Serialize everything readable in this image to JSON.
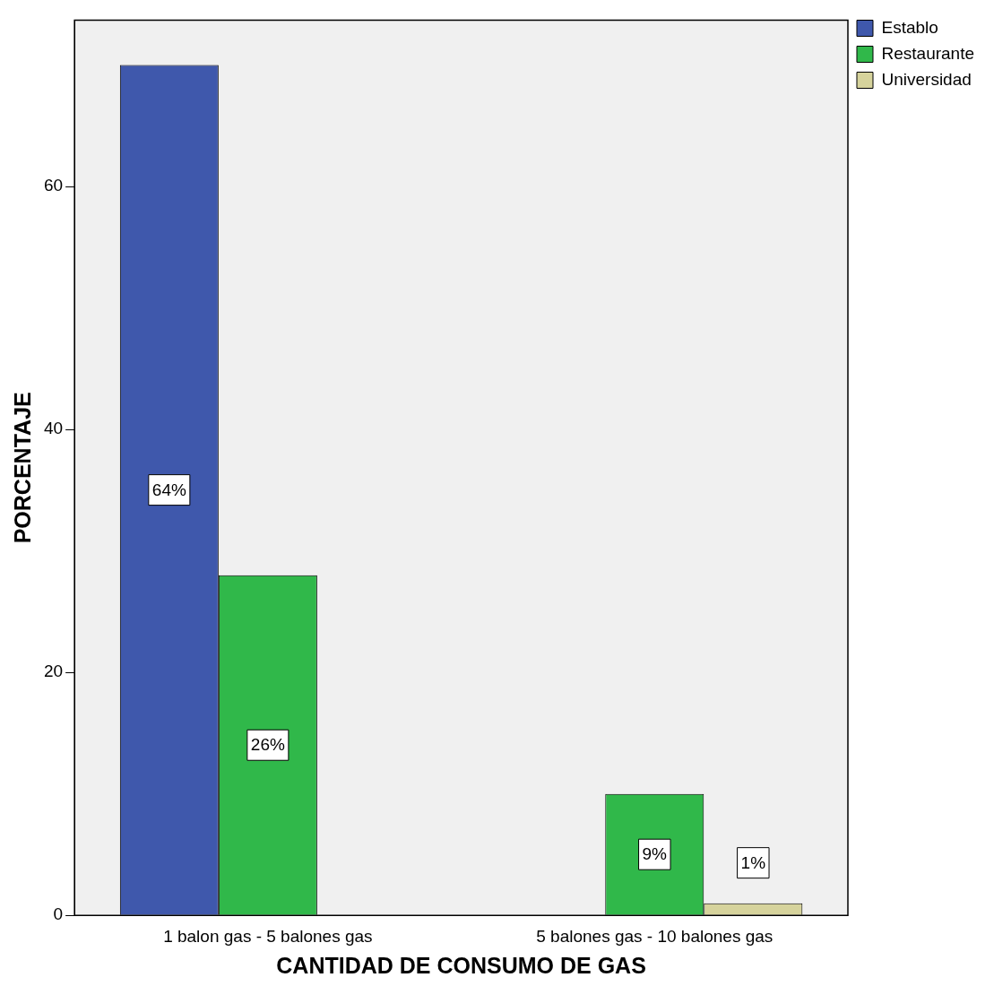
{
  "chart_data": {
    "type": "bar",
    "xlabel": "CANTIDAD DE CONSUMO DE GAS",
    "ylabel": "PORCENTAJE",
    "categories": [
      "1 balon gas - 5 balones gas",
      "5 balones gas - 10 balones gas"
    ],
    "series": [
      {
        "name": "Establo",
        "color": "#3f58ac",
        "values": [
          70,
          null
        ]
      },
      {
        "name": "Restaurante",
        "color": "#30b84a",
        "values": [
          28,
          10
        ]
      },
      {
        "name": "Universidad",
        "color": "#d6d39c",
        "values": [
          null,
          1
        ]
      }
    ],
    "annotations": [
      "64%",
      "26%",
      "9%",
      "1%"
    ],
    "ylim": [
      0,
      73.7
    ],
    "yticks": [
      0,
      20,
      40,
      60
    ],
    "grid": false,
    "legend": "top right"
  }
}
